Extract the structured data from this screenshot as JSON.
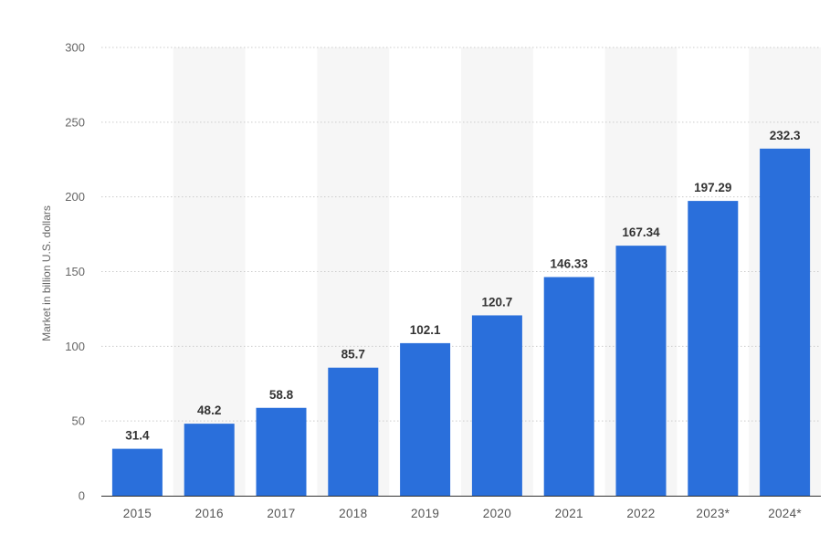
{
  "chart_data": {
    "type": "bar",
    "categories": [
      "2015",
      "2016",
      "2017",
      "2018",
      "2019",
      "2020",
      "2021",
      "2022",
      "2023*",
      "2024*"
    ],
    "values": [
      31.4,
      48.2,
      58.8,
      85.7,
      102.1,
      120.7,
      146.33,
      167.34,
      197.29,
      232.3
    ],
    "value_labels": [
      "31.4",
      "48.2",
      "58.8",
      "85.7",
      "102.1",
      "120.7",
      "146.33",
      "167.34",
      "197.29",
      "232.3"
    ],
    "ylabel": "Market in billion U.S. dollars",
    "xlabel": "",
    "ylim": [
      0,
      300
    ],
    "yticks": [
      0,
      50,
      100,
      150,
      200,
      250,
      300
    ],
    "grid": true,
    "grid_style": "dotted",
    "alternating_column_bands": true,
    "bar_color": "#2a6fdb",
    "band_color": "#f6f6f6",
    "grid_color": "#cccccc",
    "axis_color": "#333333"
  }
}
